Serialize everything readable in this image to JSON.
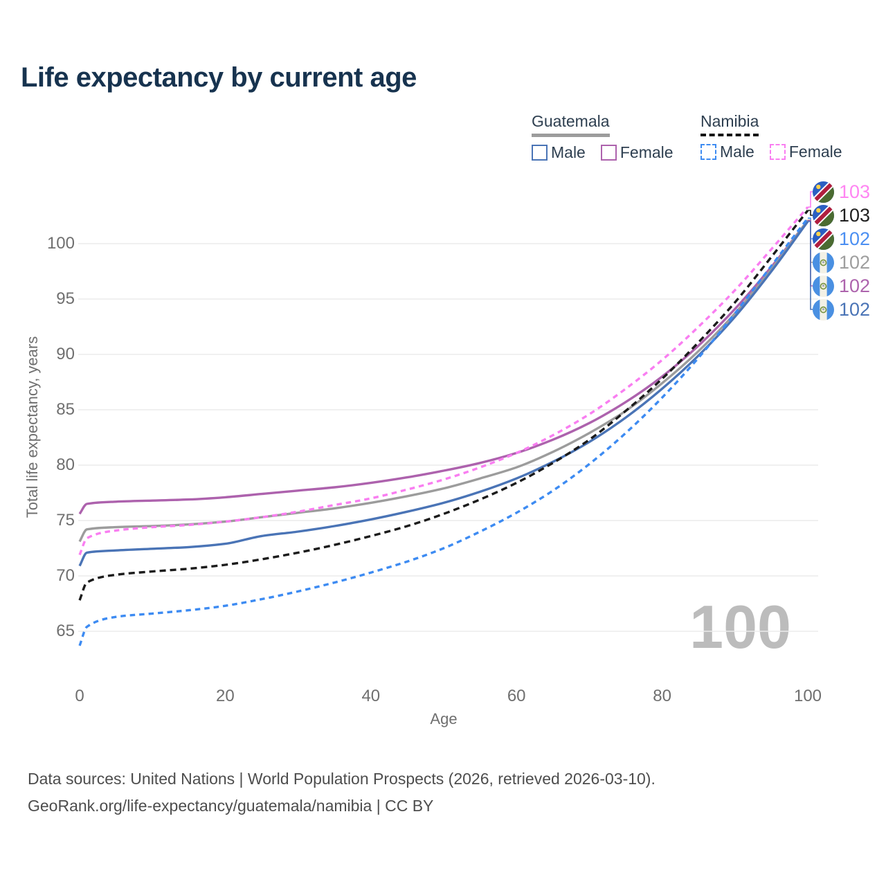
{
  "page": {
    "title": "Life expectancy by current age"
  },
  "legend": {
    "groups": [
      {
        "name": "Guatemala",
        "underline_style": "solid",
        "underline_color": "#9c9c9c",
        "items": [
          {
            "label": "Male",
            "color": "#4a74b6",
            "dashed": false
          },
          {
            "label": "Female",
            "color": "#ad62ad",
            "dashed": false
          }
        ]
      },
      {
        "name": "Namibia",
        "underline_style": "dashed",
        "underline_color": "#141414",
        "items": [
          {
            "label": "Male",
            "color": "#3d8bf2",
            "dashed": true
          },
          {
            "label": "Female",
            "color": "#f97ef1",
            "dashed": true
          }
        ]
      }
    ]
  },
  "chart_data": {
    "type": "line",
    "title": "Life expectancy by current age",
    "xlabel": "Age",
    "ylabel": "Total life expectancy, years",
    "x_ticks": [
      0,
      20,
      40,
      60,
      80,
      100
    ],
    "y_ticks": [
      65,
      70,
      75,
      80,
      85,
      90,
      95,
      100
    ],
    "xlim": [
      0,
      100
    ],
    "ylim": [
      62.5,
      104.5
    ],
    "grid": "horizontal",
    "age_watermark": "100",
    "x": [
      0,
      1,
      5,
      10,
      15,
      20,
      25,
      30,
      35,
      40,
      45,
      50,
      55,
      60,
      65,
      70,
      75,
      80,
      85,
      90,
      95,
      100
    ],
    "series": [
      {
        "id": "gt_female",
        "country": "Guatemala",
        "sex": "Female",
        "color": "#ad62ad",
        "dashed": false,
        "flag": "guatemala",
        "end_label": "102",
        "values": [
          75.6,
          76.5,
          76.7,
          76.8,
          76.9,
          77.1,
          77.4,
          77.7,
          78.0,
          78.4,
          78.9,
          79.5,
          80.2,
          81.1,
          82.3,
          83.8,
          85.7,
          88.0,
          90.8,
          94.1,
          97.9,
          102.08
        ]
      },
      {
        "id": "gt_all",
        "country": "Guatemala",
        "sex": "Both",
        "color": "#9c9c9c",
        "dashed": false,
        "flag": "guatemala",
        "end_label": "102",
        "values": [
          73.1,
          74.2,
          74.4,
          74.5,
          74.65,
          74.9,
          75.3,
          75.7,
          76.1,
          76.6,
          77.2,
          77.9,
          78.8,
          79.8,
          81.2,
          82.9,
          84.9,
          87.4,
          90.3,
          93.7,
          97.7,
          102.12
        ]
      },
      {
        "id": "gt_male",
        "country": "Guatemala",
        "sex": "Male",
        "color": "#4a74b6",
        "dashed": false,
        "flag": "guatemala",
        "end_label": "102",
        "values": [
          70.9,
          72.1,
          72.3,
          72.45,
          72.6,
          72.9,
          73.6,
          74.0,
          74.5,
          75.1,
          75.8,
          76.6,
          77.6,
          78.8,
          80.3,
          82.1,
          84.3,
          86.9,
          89.9,
          93.4,
          97.5,
          102.0
        ]
      },
      {
        "id": "na_female",
        "country": "Namibia",
        "sex": "Female",
        "color": "#f97ef1",
        "dashed": true,
        "flag": "namibia",
        "end_label": "103",
        "values": [
          71.9,
          73.4,
          74.1,
          74.4,
          74.6,
          74.9,
          75.3,
          75.8,
          76.4,
          77.0,
          77.8,
          78.7,
          79.8,
          81.1,
          82.7,
          84.6,
          86.9,
          89.5,
          92.5,
          95.8,
          99.5,
          103.3
        ]
      },
      {
        "id": "na_all",
        "country": "Namibia",
        "sex": "Both",
        "color": "#1b1b1b",
        "dashed": true,
        "flag": "namibia",
        "end_label": "103",
        "values": [
          67.8,
          69.4,
          70.1,
          70.4,
          70.65,
          71.0,
          71.5,
          72.1,
          72.8,
          73.6,
          74.5,
          75.6,
          76.9,
          78.4,
          80.2,
          82.3,
          84.9,
          87.8,
          91.1,
          94.7,
          98.8,
          103.0
        ]
      },
      {
        "id": "na_male",
        "country": "Namibia",
        "sex": "Male",
        "color": "#3d8bf2",
        "dashed": true,
        "flag": "namibia",
        "end_label": "102",
        "values": [
          63.7,
          65.4,
          66.3,
          66.6,
          66.9,
          67.3,
          67.9,
          68.6,
          69.4,
          70.3,
          71.3,
          72.5,
          74.0,
          75.7,
          77.7,
          80.1,
          82.9,
          86.1,
          89.7,
          93.7,
          98.0,
          102.3
        ]
      }
    ],
    "end_label_order": [
      "na_female",
      "na_all",
      "na_male",
      "gt_all",
      "gt_female",
      "gt_male"
    ],
    "end_label_colors": {
      "na_female": "#ff85f2",
      "na_all": "#1f1f1f",
      "na_male": "#4b8ff2",
      "gt_all": "#9e9e9e",
      "gt_female": "#ad64ad",
      "gt_male": "#4a74b6"
    }
  },
  "footer": {
    "line1": "Data sources: United Nations | World Population Prospects (2026, retrieved 2026-03-10).",
    "line2": "GeoRank.org/life-expectancy/guatemala/namibia | CC BY"
  }
}
